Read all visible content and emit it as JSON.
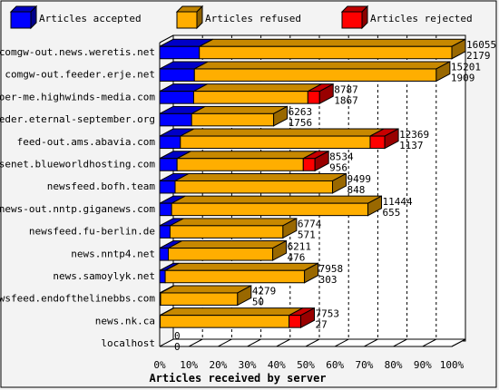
{
  "chart_data": {
    "type": "bar",
    "orientation": "horizontal",
    "stacked": true,
    "style": "3d",
    "title": "",
    "xlabel": "Articles received by server",
    "ylabel": "",
    "xlim": [
      0,
      100
    ],
    "x_unit": "%",
    "x_ticks": [
      "0%",
      "10%",
      "20%",
      "30%",
      "40%",
      "50%",
      "60%",
      "70%",
      "80%",
      "90%",
      "100%"
    ],
    "grid": "vertical dashed lines",
    "legend_position": "top",
    "series": [
      {
        "name": "Articles accepted",
        "color": "#0000ff"
      },
      {
        "name": "Articles refused",
        "color": "#ffae00"
      },
      {
        "name": "Articles rejected",
        "color": "#ff0000"
      }
    ],
    "categories": [
      "comgw-out.news.weretis.net",
      "comgw-out.feeder.erje.net",
      "voer-me.highwinds-media.com",
      "feeder.eternal-september.org",
      "feed-out.ams.abavia.com",
      "usenet.blueworldhosting.com",
      "newsfeed.bofh.team",
      "news-out.nntp.giganews.com",
      "newsfeed.fu-berlin.de",
      "news.nntp4.net",
      "news.samoylyk.net",
      "newsfeed.endofthelinebbs.com",
      "news.nk.ca",
      "localhost"
    ],
    "totals": [
      16055,
      15201,
      8787,
      6263,
      12369,
      8534,
      9499,
      11444,
      6774,
      6211,
      7958,
      4279,
      7753,
      0
    ],
    "accepted": [
      2179,
      1909,
      1867,
      1756,
      1137,
      956,
      848,
      655,
      571,
      476,
      303,
      50,
      27,
      0
    ],
    "rejected_pct": [
      0,
      0,
      4,
      0,
      5,
      4,
      0,
      0,
      0,
      0,
      0,
      0,
      4,
      0
    ]
  }
}
